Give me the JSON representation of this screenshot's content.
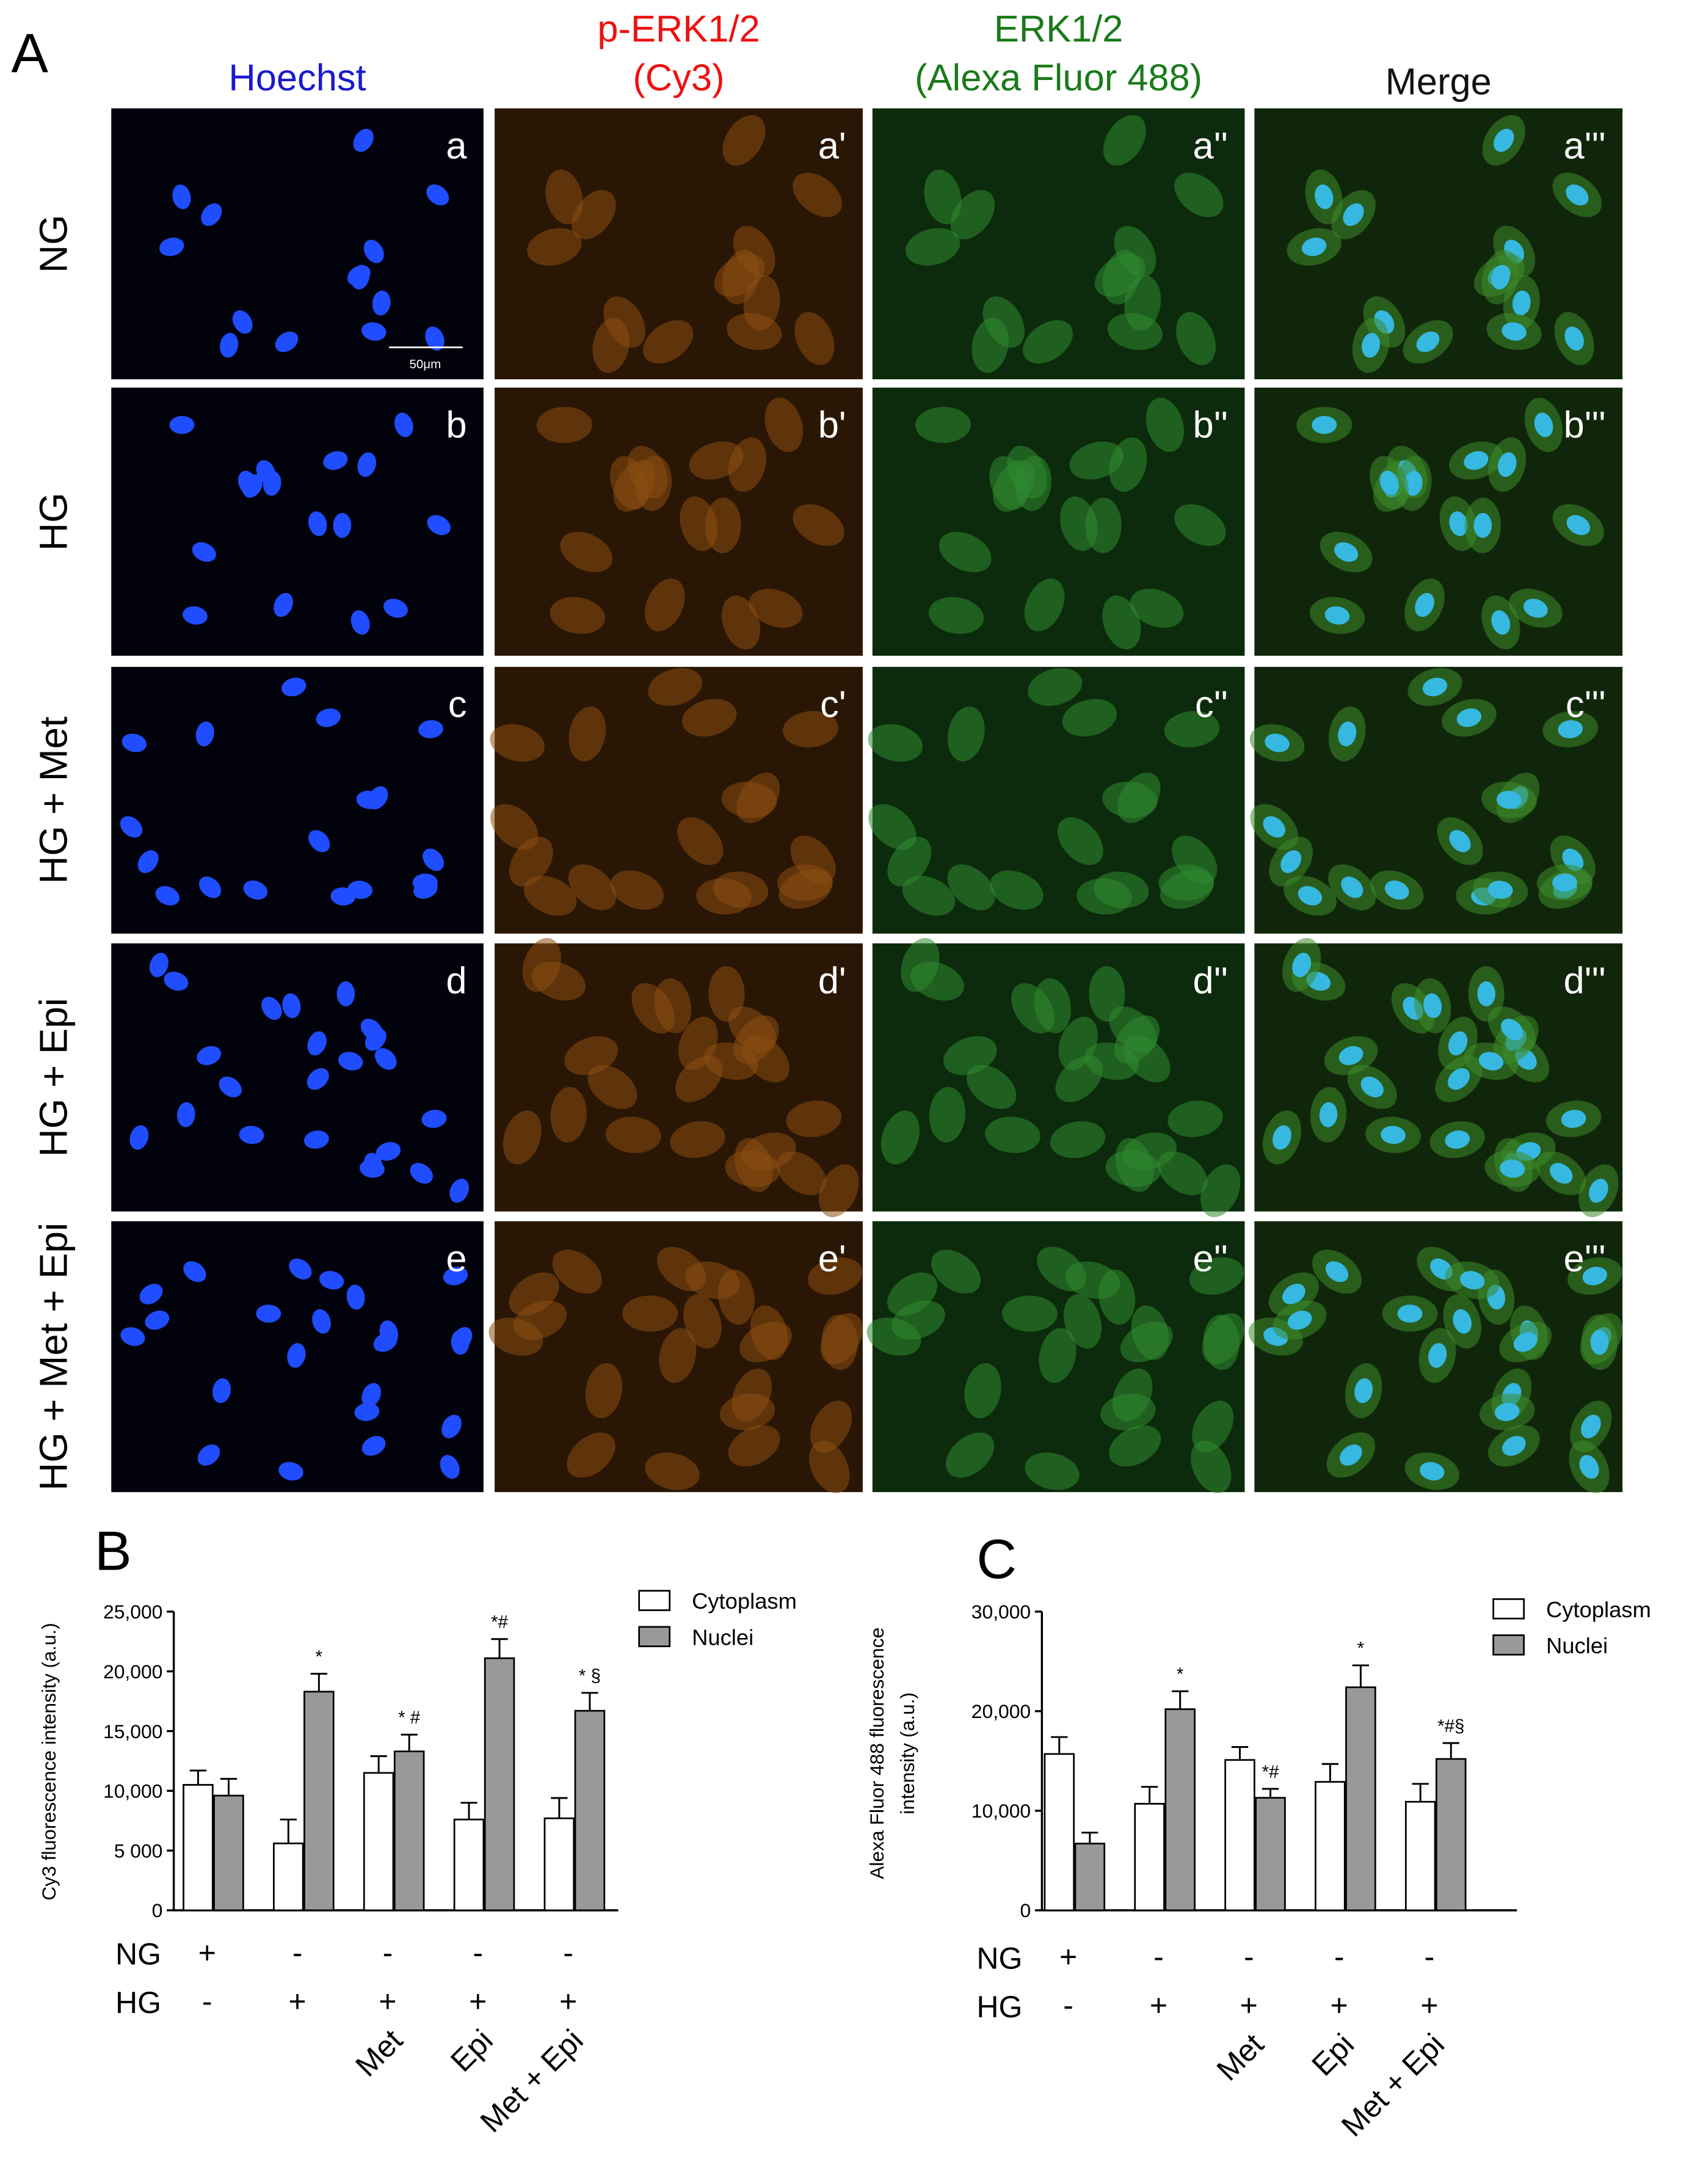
{
  "panel_a": {
    "letter": "A",
    "columns": [
      {
        "lines": [
          "Hoechst"
        ]
      },
      {
        "lines": [
          "p-ERK1/2",
          "(Cy3)"
        ]
      },
      {
        "lines": [
          "ERK1/2",
          "(Alexa Fluor 488)"
        ]
      },
      {
        "lines": [
          "Merge"
        ]
      }
    ],
    "rows": [
      "NG",
      "HG",
      "HG + Met",
      "HG + Epi",
      "HG + Met + Epi"
    ],
    "panel_labels": [
      [
        "a",
        "a'",
        "a''",
        "a'''"
      ],
      [
        "b",
        "b'",
        "b''",
        "b'''"
      ],
      [
        "c",
        "c'",
        "c''",
        "c'''"
      ],
      [
        "d",
        "d'",
        "d''",
        "d'''"
      ],
      [
        "e",
        "e'",
        "e''",
        "e'''"
      ]
    ],
    "scale_bar": "50μm"
  },
  "chart_data": [
    {
      "type": "bar",
      "letter": "B",
      "y_label": [
        "Cy3 fluorescence intensity (a.u.)"
      ],
      "categories": [
        null,
        null,
        "Met",
        "Epi",
        "Met + Epi"
      ],
      "treatments": [
        {
          "label": "NG",
          "values": [
            "+",
            "-",
            "-",
            "-",
            "-"
          ]
        },
        {
          "label": "HG",
          "values": [
            "-",
            "+",
            "+",
            "+",
            "+"
          ]
        }
      ],
      "series": [
        {
          "name": "Cytoplasm",
          "color": "#ffffff",
          "values": [
            10500,
            5600,
            11500,
            7600,
            7700
          ],
          "errors": [
            1200,
            2000,
            1400,
            1400,
            1700
          ]
        },
        {
          "name": "Nuclei",
          "color": "#999999",
          "values": [
            9600,
            18300,
            13300,
            21100,
            16700
          ],
          "errors": [
            1400,
            1500,
            1400,
            1600,
            1500
          ]
        }
      ],
      "annotations": [
        null,
        "*",
        "* #",
        "*#",
        "* §"
      ],
      "ylim": [
        0,
        25000
      ],
      "yticks": [
        0,
        {
          "value": 5000,
          "label": "5 000"
        },
        {
          "value": 10000,
          "label": "10,000"
        },
        {
          "value": 15000,
          "label": "15,000"
        },
        {
          "value": 20000,
          "label": "20,000"
        },
        {
          "value": 25000,
          "label": "25,000"
        }
      ]
    },
    {
      "type": "bar",
      "letter": "C",
      "y_label": [
        "Alexa Fluor 488 fluorescence",
        "intensity (a.u.)"
      ],
      "categories": [
        null,
        null,
        "Met",
        "Epi",
        "Met + Epi"
      ],
      "treatments": [
        {
          "label": "NG",
          "values": [
            "+",
            "-",
            "-",
            "-",
            "-"
          ]
        },
        {
          "label": "HG",
          "values": [
            "-",
            "+",
            "+",
            "+",
            "+"
          ]
        }
      ],
      "series": [
        {
          "name": "Cytoplasm",
          "color": "#ffffff",
          "values": [
            15700,
            10700,
            15100,
            12900,
            10900
          ],
          "errors": [
            1700,
            1700,
            1300,
            1800,
            1800
          ]
        },
        {
          "name": "Nuclei",
          "color": "#999999",
          "values": [
            6700,
            20200,
            11300,
            22400,
            15200
          ],
          "errors": [
            1100,
            1800,
            900,
            2200,
            1600
          ]
        }
      ],
      "annotations": [
        null,
        "*",
        "*#",
        "*",
        "*#§"
      ],
      "ylim": [
        0,
        30000
      ],
      "yticks": [
        0,
        {
          "value": 10000,
          "label": "10,000"
        },
        {
          "value": 20000,
          "label": "20,000"
        },
        {
          "value": 30000,
          "label": "30,000"
        }
      ]
    }
  ]
}
